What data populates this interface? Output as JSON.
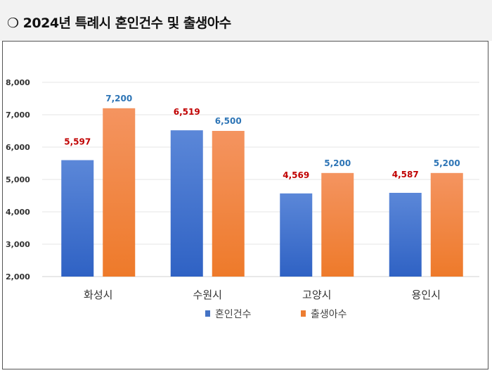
{
  "header": {
    "bullet": "❍",
    "title": "2024년 특례시 혼인건수 및 출생아수"
  },
  "chart_data": {
    "type": "bar",
    "title": "2024년 특례시 혼인건수 및 출생아수",
    "categories": [
      "화성시",
      "수원시",
      "고양시",
      "용인시"
    ],
    "series": [
      {
        "name": "혼인건수",
        "values": [
          5597,
          6519,
          4569,
          4587
        ],
        "color": "#4472c4",
        "label_color": "#c00000"
      },
      {
        "name": "출생아수",
        "values": [
          7200,
          6500,
          5200,
          5200
        ],
        "color": "#ed7d31",
        "label_color": "#2e75b6"
      }
    ],
    "data_labels": [
      [
        "5,597",
        "6,519",
        "4,569",
        "4,587"
      ],
      [
        "7,200",
        "6,500",
        "5,200",
        "5,200"
      ]
    ],
    "yticks": [
      "2,000",
      "3,000",
      "4,000",
      "5,000",
      "6,000",
      "7,000",
      "8,000"
    ],
    "ylim": [
      2000,
      8000
    ],
    "grid": true,
    "legend": "bottom"
  }
}
